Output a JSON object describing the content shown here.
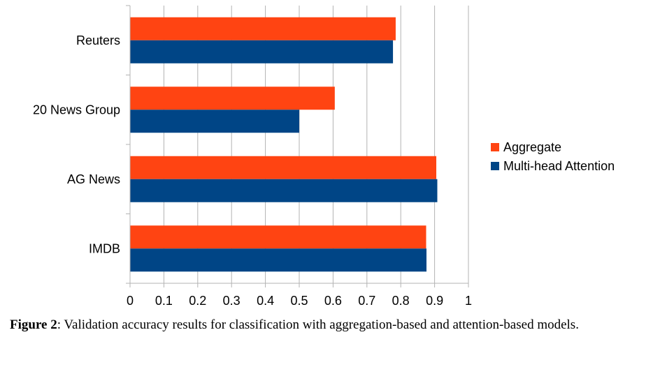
{
  "chart_data": {
    "type": "bar",
    "orientation": "horizontal",
    "categories": [
      "Reuters",
      "20 News Group",
      "AG News",
      "IMDB"
    ],
    "series": [
      {
        "name": "Aggregate",
        "color": "#FF4412",
        "values": [
          0.785,
          0.605,
          0.905,
          0.875
        ]
      },
      {
        "name": "Multi-head Attention",
        "color": "#004586",
        "values": [
          0.777,
          0.5,
          0.908,
          0.876
        ]
      }
    ],
    "xlim": [
      0,
      1
    ],
    "xticks": [
      "0",
      "0.1",
      "0.2",
      "0.3",
      "0.4",
      "0.5",
      "0.6",
      "0.7",
      "0.8",
      "0.9",
      "1"
    ],
    "grid": true,
    "legend_position": "right",
    "title": "",
    "xlabel": "",
    "ylabel": ""
  },
  "caption": {
    "label": "Figure 2",
    "text": ": Validation accuracy results for classification with aggregation-based and attention-based models."
  }
}
